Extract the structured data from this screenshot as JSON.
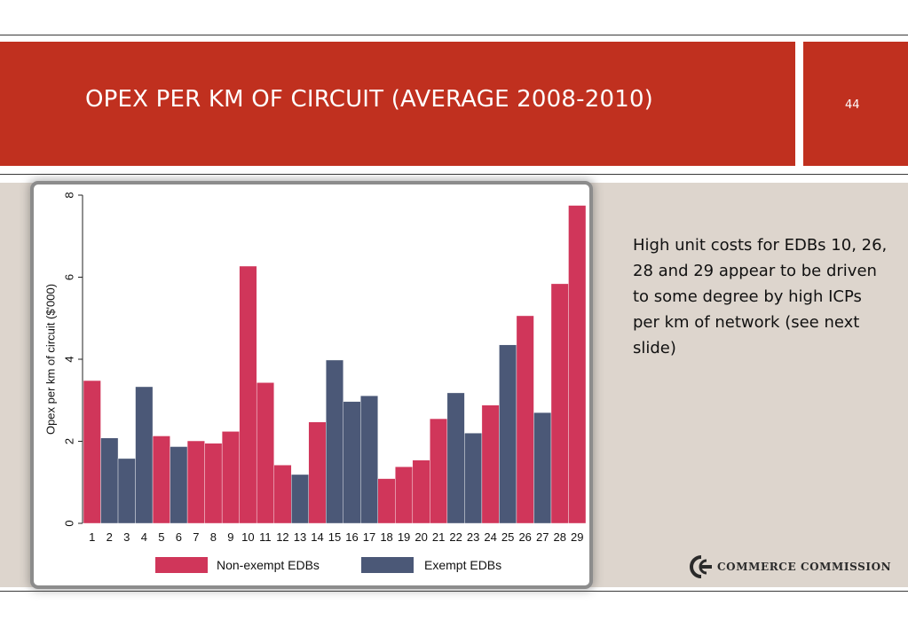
{
  "slide": {
    "title": "OPEX PER KM OF CIRCUIT (AVERAGE 2008-2010)",
    "number": "44",
    "note": "High unit costs for EDBs 10, 26, 28 and 29 appear to be driven to some degree by high ICPs per km of network (see next slide)",
    "logo_text": "COMMERCE COMMISSION"
  },
  "colors": {
    "banner": "#c0301f",
    "non_exempt": "#d0365a",
    "exempt": "#4b5877"
  },
  "chart_data": {
    "type": "bar",
    "title": "",
    "xlabel": "",
    "ylabel": "Opex per km of circuit ($'000)",
    "ylim": [
      0,
      8
    ],
    "yticks": [
      "0",
      "2",
      "4",
      "6",
      "8"
    ],
    "categories": [
      "1",
      "2",
      "3",
      "4",
      "5",
      "6",
      "7",
      "8",
      "9",
      "10",
      "11",
      "12",
      "13",
      "14",
      "15",
      "16",
      "17",
      "18",
      "19",
      "20",
      "21",
      "22",
      "23",
      "24",
      "25",
      "26",
      "27",
      "28",
      "29"
    ],
    "values": [
      3.48,
      2.08,
      1.58,
      3.33,
      2.13,
      1.87,
      2.01,
      1.95,
      2.24,
      6.27,
      3.43,
      1.42,
      1.19,
      2.47,
      3.98,
      2.97,
      3.11,
      1.09,
      1.38,
      1.54,
      2.55,
      3.18,
      2.2,
      2.88,
      4.35,
      5.06,
      2.7,
      5.84,
      7.75
    ],
    "groups": [
      "Non-exempt EDBs",
      "Exempt EDBs",
      "Exempt EDBs",
      "Exempt EDBs",
      "Non-exempt EDBs",
      "Exempt EDBs",
      "Non-exempt EDBs",
      "Non-exempt EDBs",
      "Non-exempt EDBs",
      "Non-exempt EDBs",
      "Non-exempt EDBs",
      "Non-exempt EDBs",
      "Exempt EDBs",
      "Non-exempt EDBs",
      "Exempt EDBs",
      "Exempt EDBs",
      "Exempt EDBs",
      "Non-exempt EDBs",
      "Non-exempt EDBs",
      "Non-exempt EDBs",
      "Non-exempt EDBs",
      "Exempt EDBs",
      "Exempt EDBs",
      "Non-exempt EDBs",
      "Exempt EDBs",
      "Non-exempt EDBs",
      "Exempt EDBs",
      "Non-exempt EDBs",
      "Non-exempt EDBs"
    ],
    "legend": {
      "placement": "bottom",
      "entries": [
        {
          "name": "Non-exempt EDBs",
          "color": "#d0365a"
        },
        {
          "name": "Exempt EDBs",
          "color": "#4b5877"
        }
      ]
    },
    "grid": false
  }
}
